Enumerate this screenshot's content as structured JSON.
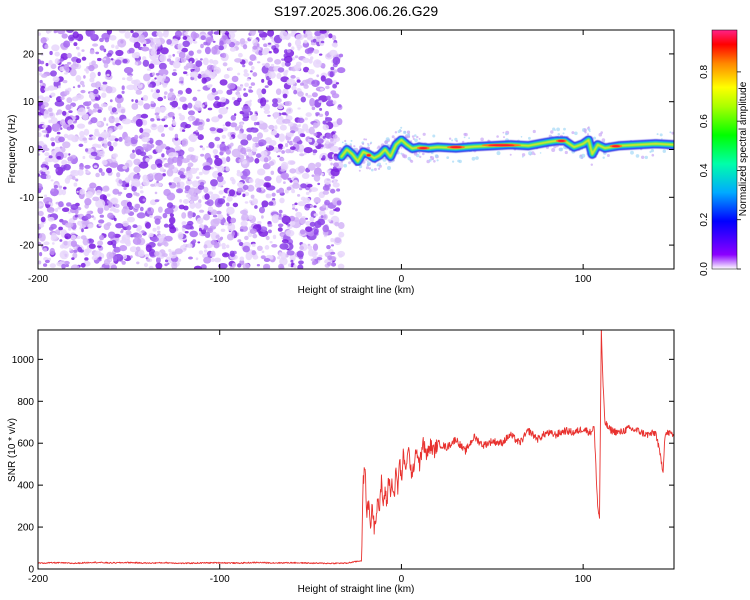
{
  "title": "S197.2025.306.06.26.G29",
  "chart_data": [
    {
      "type": "heatmap",
      "name": "spectrogram",
      "xlabel": "Height of straight line (km)",
      "ylabel": "Frequency (Hz)",
      "xlim": [
        -200,
        150
      ],
      "ylim": [
        -25,
        25
      ],
      "xticks": [
        -200,
        -100,
        0,
        100
      ],
      "yticks": [
        -20,
        -10,
        0,
        10,
        20
      ],
      "noise_region_x": [
        -200,
        -33
      ],
      "signal_region_x": [
        -33,
        150
      ],
      "signal_ridge": {
        "x": [
          -33,
          -30,
          -27,
          -24,
          -21,
          -18,
          -15,
          -12,
          -9,
          -6,
          -3,
          0,
          3,
          6,
          10,
          15,
          20,
          30,
          40,
          50,
          60,
          70,
          80,
          85,
          90,
          95,
          100,
          103,
          105,
          108,
          112,
          120,
          130,
          140,
          150
        ],
        "y": [
          -1.5,
          0,
          -1,
          -2.5,
          -0.5,
          -1,
          -1.8,
          -1.2,
          0,
          -1.5,
          1,
          2,
          1,
          0.2,
          0.5,
          0.3,
          0.5,
          0.3,
          0.6,
          0.8,
          1,
          0.8,
          1.5,
          1.8,
          1.8,
          0.5,
          1.2,
          2,
          -1,
          1,
          0.3,
          0.8,
          1,
          1.2,
          1
        ]
      },
      "colorbar": {
        "label": "Normalized spectral amplitude",
        "ticks": [
          0.0,
          0.2,
          0.4,
          0.6,
          0.8
        ],
        "tick_labels": [
          "0.0",
          "0.2",
          "0.4",
          "0.6",
          "0.8"
        ],
        "range": [
          0,
          0.97
        ]
      }
    },
    {
      "type": "line",
      "name": "snr",
      "xlabel": "Height of straight line (km)",
      "ylabel": "SNR (10 * v/v)",
      "xlim": [
        -200,
        150
      ],
      "ylim": [
        0,
        1140
      ],
      "xticks": [
        -200,
        -100,
        0,
        100
      ],
      "yticks": [
        0,
        200,
        400,
        600,
        800,
        1000
      ],
      "color": "#e8312e",
      "x": [
        -200,
        -190,
        -180,
        -170,
        -160,
        -150,
        -140,
        -130,
        -120,
        -110,
        -100,
        -90,
        -80,
        -70,
        -60,
        -50,
        -40,
        -30,
        -22,
        -21,
        -20,
        -19,
        -18,
        -17,
        -16,
        -15,
        -14,
        -13,
        -12,
        -11,
        -10,
        -9,
        -8,
        -7,
        -6,
        -5,
        -4,
        -3,
        -2,
        -1,
        0,
        1,
        2,
        4,
        6,
        8,
        10,
        12,
        14,
        16,
        18,
        20,
        25,
        30,
        35,
        40,
        45,
        50,
        55,
        60,
        65,
        70,
        75,
        80,
        85,
        90,
        95,
        100,
        104,
        106,
        108,
        109,
        110,
        111,
        112,
        114,
        116,
        120,
        125,
        130,
        135,
        140,
        144,
        145,
        147,
        150
      ],
      "y": [
        28,
        30,
        27,
        32,
        29,
        31,
        28,
        30,
        27,
        29,
        30,
        28,
        31,
        29,
        30,
        28,
        27,
        28,
        40,
        420,
        480,
        260,
        320,
        210,
        300,
        200,
        260,
        340,
        280,
        420,
        300,
        380,
        300,
        450,
        360,
        420,
        340,
        470,
        380,
        520,
        420,
        540,
        480,
        560,
        430,
        580,
        500,
        600,
        540,
        590,
        560,
        600,
        580,
        620,
        560,
        630,
        590,
        610,
        600,
        640,
        600,
        660,
        620,
        650,
        640,
        660,
        650,
        670,
        650,
        680,
        300,
        240,
        1140,
        860,
        700,
        670,
        660,
        650,
        670,
        660,
        640,
        650,
        470,
        640,
        650,
        640
      ]
    }
  ]
}
